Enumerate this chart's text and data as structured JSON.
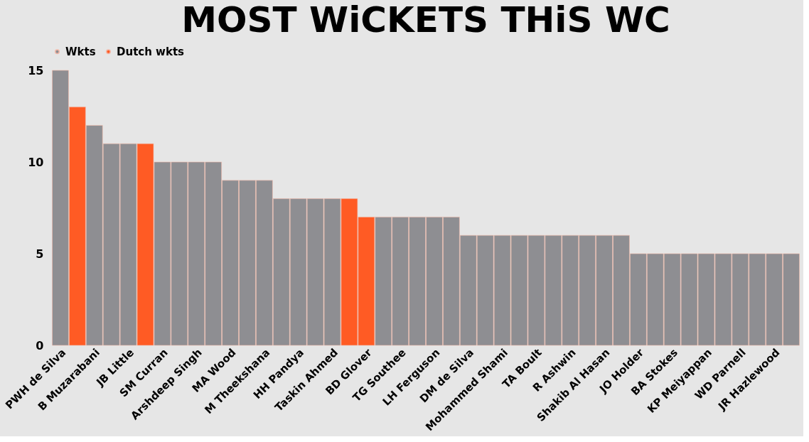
{
  "chart_data": {
    "type": "bar",
    "title": "MOST WiCKETS THiS WC",
    "categories": [
      "PWH de Silva",
      null,
      "B Muzarabani",
      null,
      "JB Little",
      null,
      "SM Curran",
      null,
      "Arshdeep Singh",
      null,
      "MA Wood",
      null,
      "M Theekshana",
      null,
      "HH Pandya",
      null,
      "Taskin Ahmed",
      null,
      "BD Glover",
      null,
      "TG Southee",
      null,
      "LH Ferguson",
      null,
      "DM de Silva",
      null,
      "Mohammed Shami",
      null,
      "TA Boult",
      null,
      "R Ashwin",
      null,
      "Shakib Al Hasan",
      null,
      "JO Holder",
      null,
      "BA Stokes",
      null,
      "KP Meiyappan",
      null,
      "WD Parnell",
      null,
      "JR Hazlewood",
      null
    ],
    "series": [
      {
        "name": "Wkts",
        "color": "#8e8e92",
        "values": [
          15,
          null,
          12,
          11,
          11,
          null,
          10,
          10,
          10,
          10,
          9,
          9,
          9,
          8,
          8,
          8,
          8,
          null,
          null,
          7,
          7,
          7,
          7,
          7,
          6,
          6,
          6,
          6,
          6,
          6,
          6,
          6,
          6,
          6,
          5,
          5,
          5,
          5,
          5,
          5,
          5,
          5,
          5,
          5
        ]
      },
      {
        "name": "Dutch wkts",
        "color": "#ff5b24",
        "values": [
          null,
          13,
          null,
          null,
          null,
          11,
          null,
          null,
          null,
          null,
          null,
          null,
          null,
          null,
          null,
          null,
          null,
          8,
          7,
          null,
          null,
          null,
          null,
          null,
          null,
          null,
          null,
          null,
          null,
          null,
          null,
          null,
          null,
          null,
          null,
          null,
          null,
          null,
          null,
          null,
          null,
          null,
          null,
          null
        ]
      }
    ],
    "ylim": [
      0,
      15
    ],
    "yticks": [
      0,
      5,
      10,
      15
    ],
    "grid": false,
    "legend": "top"
  }
}
